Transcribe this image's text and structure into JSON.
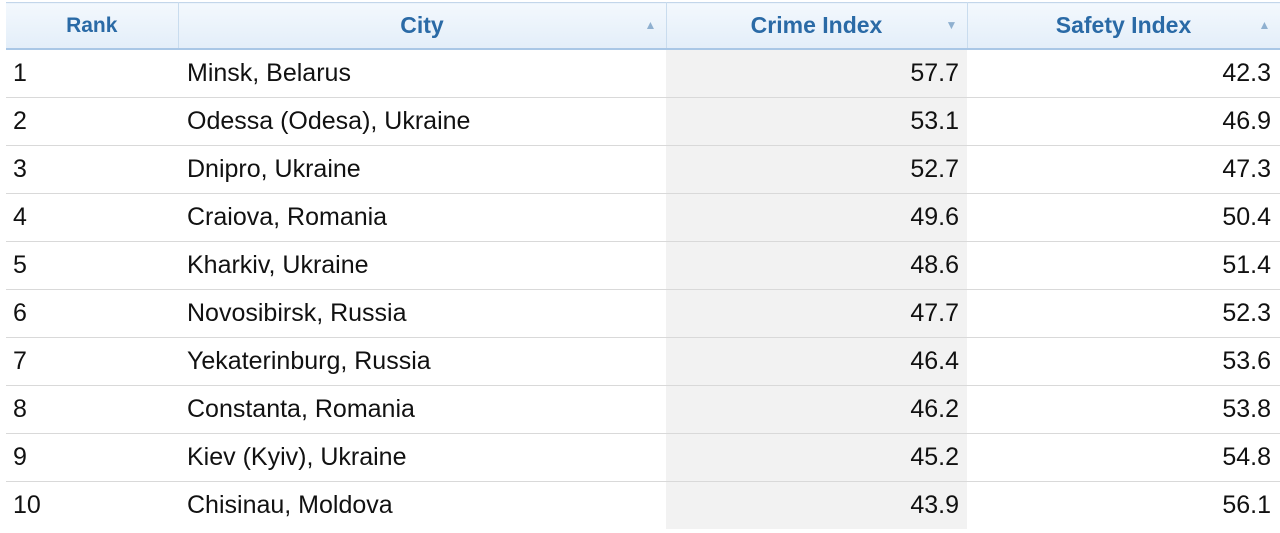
{
  "table": {
    "headers": {
      "rank": "Rank",
      "city": "City",
      "crime": "Crime Index",
      "safety": "Safety Index"
    },
    "sort_icons": {
      "city": "chevron-up-icon",
      "crime": "caret-down-icon",
      "safety": "chevron-up-icon"
    },
    "rows": [
      {
        "rank": "1",
        "city": "Minsk, Belarus",
        "crime": "57.7",
        "safety": "42.3"
      },
      {
        "rank": "2",
        "city": "Odessa (Odesa), Ukraine",
        "crime": "53.1",
        "safety": "46.9"
      },
      {
        "rank": "3",
        "city": "Dnipro, Ukraine",
        "crime": "52.7",
        "safety": "47.3"
      },
      {
        "rank": "4",
        "city": "Craiova, Romania",
        "crime": "49.6",
        "safety": "50.4"
      },
      {
        "rank": "5",
        "city": "Kharkiv, Ukraine",
        "crime": "48.6",
        "safety": "51.4"
      },
      {
        "rank": "6",
        "city": "Novosibirsk, Russia",
        "crime": "47.7",
        "safety": "52.3"
      },
      {
        "rank": "7",
        "city": "Yekaterinburg, Russia",
        "crime": "46.4",
        "safety": "53.6"
      },
      {
        "rank": "8",
        "city": "Constanta, Romania",
        "crime": "46.2",
        "safety": "53.8"
      },
      {
        "rank": "9",
        "city": "Kiev (Kyiv), Ukraine",
        "crime": "45.2",
        "safety": "54.8"
      },
      {
        "rank": "10",
        "city": "Chisinau, Moldova",
        "crime": "43.9",
        "safety": "56.1"
      }
    ]
  }
}
